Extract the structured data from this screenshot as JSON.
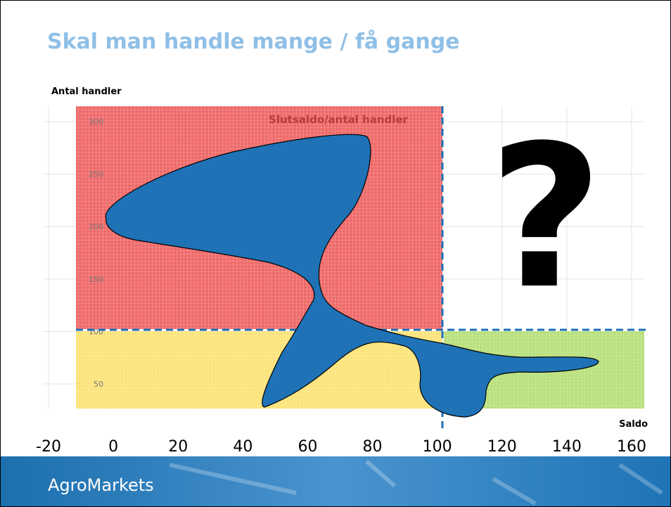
{
  "slide": {
    "title": "Skal man handle mange / få gange",
    "brand": "AgroMarkets"
  },
  "chart": {
    "y_label": "Antal handler",
    "x_label": "Saldo",
    "inner_title": "Slutsaldo/antal handler",
    "mark": "?",
    "xticks": [
      -20,
      0,
      20,
      40,
      60,
      80,
      100,
      120,
      140,
      160
    ],
    "yticks": [
      50,
      100,
      150,
      200,
      250,
      300
    ]
  }
}
